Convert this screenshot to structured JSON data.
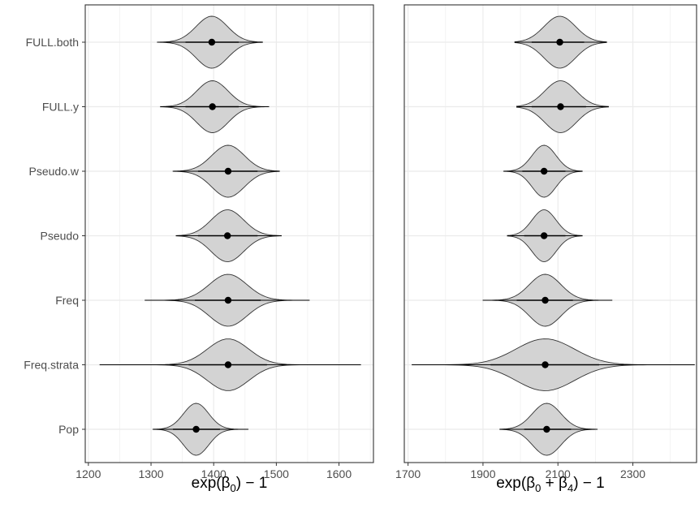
{
  "chart_data": [
    {
      "type": "violin",
      "xlabel_parts": {
        "pre": "exp(",
        "sym": "β",
        "sub": "0",
        "post": ") − 1"
      },
      "xlim": [
        1195,
        1655
      ],
      "xticks": [
        1200,
        1300,
        1400,
        1500,
        1600
      ],
      "minor_xticks": [
        1250,
        1350,
        1450,
        1550,
        1650
      ],
      "grid": true,
      "categories": [
        "FULL.both",
        "FULL.y",
        "Pseudo.w",
        "Pseudo",
        "Freq",
        "Freq.strata",
        "Pop"
      ],
      "violins": [
        {
          "category": "FULL.both",
          "min": 1310,
          "q_low": 1355,
          "mean": 1397,
          "q_high": 1440,
          "max": 1478,
          "sd": 25
        },
        {
          "category": "FULL.y",
          "min": 1315,
          "q_low": 1355,
          "mean": 1398,
          "q_high": 1440,
          "max": 1488,
          "sd": 25
        },
        {
          "category": "Pseudo.w",
          "min": 1335,
          "q_low": 1375,
          "mean": 1423,
          "q_high": 1470,
          "max": 1505,
          "sd": 26
        },
        {
          "category": "Pseudo",
          "min": 1340,
          "q_low": 1375,
          "mean": 1422,
          "q_high": 1470,
          "max": 1508,
          "sd": 26
        },
        {
          "category": "Freq",
          "min": 1290,
          "q_low": 1370,
          "mean": 1423,
          "q_high": 1475,
          "max": 1553,
          "sd": 30
        },
        {
          "category": "Freq.strata",
          "min": 1218,
          "q_low": 1360,
          "mean": 1423,
          "q_high": 1485,
          "max": 1635,
          "sd": 33
        },
        {
          "category": "Pop",
          "min": 1303,
          "q_low": 1335,
          "mean": 1372,
          "q_high": 1410,
          "max": 1455,
          "sd": 20
        }
      ]
    },
    {
      "type": "violin",
      "xlabel_parts": {
        "pre": "exp(",
        "sym": "β",
        "sub": "0",
        "mid": " + ",
        "sym2": "β",
        "sub2": "4",
        "post": ") − 1"
      },
      "xlim": [
        1690,
        2470
      ],
      "xticks": [
        1700,
        1900,
        2100,
        2300
      ],
      "minor_xticks": [
        1800,
        2000,
        2200,
        2400
      ],
      "grid": true,
      "categories": [
        "FULL.both",
        "FULL.y",
        "Pseudo.w",
        "Pseudo",
        "Freq",
        "Freq.strata",
        "Pop"
      ],
      "violins": [
        {
          "category": "FULL.both",
          "min": 1985,
          "q_low": 2030,
          "mean": 2105,
          "q_high": 2170,
          "max": 2230,
          "sd": 42
        },
        {
          "category": "FULL.y",
          "min": 1990,
          "q_low": 2030,
          "mean": 2107,
          "q_high": 2175,
          "max": 2235,
          "sd": 42
        },
        {
          "category": "Pseudo.w",
          "min": 1955,
          "q_low": 2005,
          "mean": 2063,
          "q_high": 2120,
          "max": 2165,
          "sd": 32
        },
        {
          "category": "Pseudo",
          "min": 1965,
          "q_low": 2010,
          "mean": 2063,
          "q_high": 2120,
          "max": 2165,
          "sd": 32
        },
        {
          "category": "Freq",
          "min": 1900,
          "q_low": 1990,
          "mean": 2066,
          "q_high": 2140,
          "max": 2245,
          "sd": 42
        },
        {
          "category": "Freq.strata",
          "min": 1710,
          "q_low": 1920,
          "mean": 2066,
          "q_high": 2210,
          "max": 2465,
          "sd": 78
        },
        {
          "category": "Pop",
          "min": 1945,
          "q_low": 2010,
          "mean": 2070,
          "q_high": 2135,
          "max": 2205,
          "sd": 38
        }
      ]
    }
  ]
}
